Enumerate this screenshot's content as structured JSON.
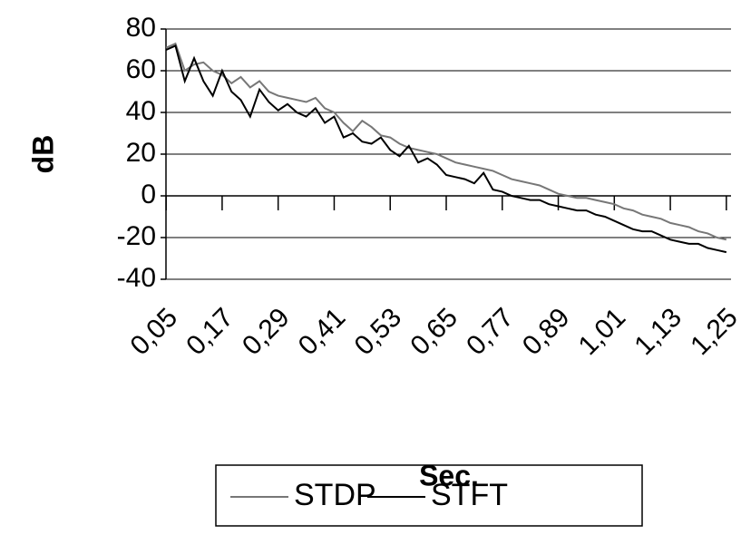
{
  "chart_data": {
    "type": "line",
    "y_label": "dB",
    "x_label": "Sec.",
    "x": [
      0.05,
      0.07,
      0.09,
      0.11,
      0.13,
      0.15,
      0.17,
      0.19,
      0.21,
      0.23,
      0.25,
      0.27,
      0.29,
      0.31,
      0.33,
      0.35,
      0.37,
      0.39,
      0.41,
      0.43,
      0.45,
      0.47,
      0.49,
      0.51,
      0.53,
      0.55,
      0.57,
      0.59,
      0.61,
      0.63,
      0.65,
      0.67,
      0.69,
      0.71,
      0.73,
      0.75,
      0.77,
      0.79,
      0.81,
      0.83,
      0.85,
      0.87,
      0.89,
      0.91,
      0.93,
      0.95,
      0.97,
      0.99,
      1.01,
      1.03,
      1.05,
      1.07,
      1.09,
      1.11,
      1.13,
      1.15,
      1.17,
      1.19,
      1.21,
      1.23,
      1.25
    ],
    "series": [
      {
        "name": "STDP",
        "color": "#777777",
        "values": [
          71,
          73,
          60,
          63,
          64,
          60,
          58,
          54,
          57,
          52,
          55,
          50,
          48,
          47,
          46,
          45,
          47,
          42,
          40,
          35,
          31,
          36,
          33,
          29,
          28,
          25,
          23,
          22,
          21,
          20,
          18,
          16,
          15,
          14,
          13,
          12,
          10,
          8,
          7,
          6,
          5,
          3,
          1,
          0,
          -1,
          -1,
          -2,
          -3,
          -4,
          -6,
          -7,
          -9,
          -10,
          -11,
          -13,
          -14,
          -15,
          -17,
          -18,
          -20,
          -21
        ]
      },
      {
        "name": "STFT",
        "color": "#000000",
        "values": [
          70,
          72,
          55,
          66,
          55,
          48,
          60,
          50,
          46,
          38,
          51,
          45,
          41,
          44,
          40,
          38,
          42,
          35,
          38,
          28,
          30,
          26,
          25,
          28,
          22,
          19,
          24,
          16,
          18,
          15,
          10,
          9,
          8,
          6,
          11,
          3,
          2,
          0,
          -1,
          -2,
          -2,
          -4,
          -5,
          -6,
          -7,
          -7,
          -9,
          -10,
          -12,
          -14,
          -16,
          -17,
          -17,
          -19,
          -21,
          -22,
          -23,
          -23,
          -25,
          -26,
          -27
        ]
      }
    ],
    "xlim": [
      0.04,
      1.26
    ],
    "xticks": [
      {
        "value": 0.05,
        "label": "0,05"
      },
      {
        "value": 0.17,
        "label": "0,17"
      },
      {
        "value": 0.29,
        "label": "0,29"
      },
      {
        "value": 0.41,
        "label": "0,41"
      },
      {
        "value": 0.53,
        "label": "0,53"
      },
      {
        "value": 0.65,
        "label": "0,65"
      },
      {
        "value": 0.77,
        "label": "0,77"
      },
      {
        "value": 0.89,
        "label": "0,89"
      },
      {
        "value": 1.01,
        "label": "1,01"
      },
      {
        "value": 1.13,
        "label": "1,13"
      },
      {
        "value": 1.25,
        "label": "1,25"
      }
    ],
    "ylim": [
      -40,
      80
    ],
    "yticks": [
      80,
      60,
      40,
      20,
      0,
      -20,
      -40
    ],
    "grid": true
  }
}
